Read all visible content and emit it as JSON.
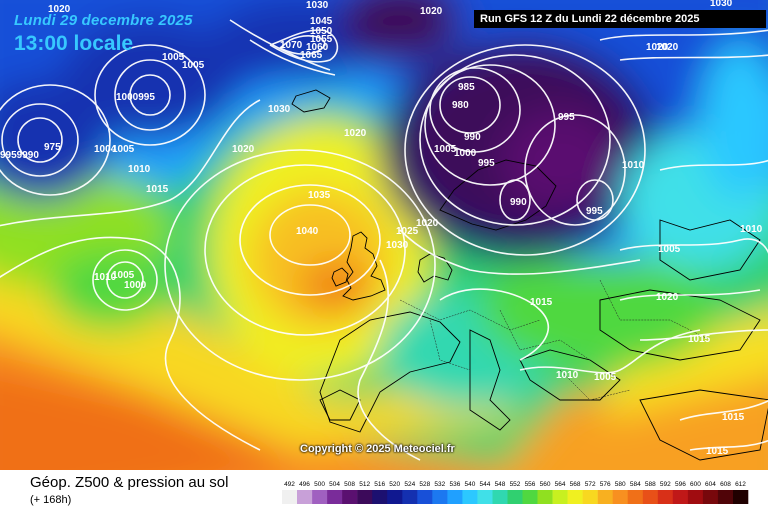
{
  "header": {
    "date": "Lundi 29 decembre 2025",
    "time": "13:00 locale",
    "run": "Run GFS 12 Z du Lundi 22 décembre 2025"
  },
  "map": {
    "copyright": "Copyright © 2025 Meteociel.fr",
    "isobar_labels": [
      {
        "text": "1020"
      },
      {
        "text": "1030"
      },
      {
        "text": "1045"
      },
      {
        "text": "1050"
      },
      {
        "text": "1055"
      },
      {
        "text": "1060"
      },
      {
        "text": "1065"
      },
      {
        "text": "1070"
      },
      {
        "text": "1020"
      },
      {
        "text": "1020"
      },
      {
        "text": "985"
      },
      {
        "text": "980"
      },
      {
        "text": "990"
      },
      {
        "text": "995"
      },
      {
        "text": "995"
      },
      {
        "text": "1010"
      },
      {
        "text": "990"
      },
      {
        "text": "995"
      },
      {
        "text": "1005"
      },
      {
        "text": "1000"
      },
      {
        "text": "1005"
      },
      {
        "text": "1020"
      },
      {
        "text": "1000995"
      },
      {
        "text": "1005"
      },
      {
        "text": "1030"
      },
      {
        "text": "1020"
      },
      {
        "text": "1020"
      },
      {
        "text": "1010"
      },
      {
        "text": "1015"
      },
      {
        "text": "1004"
      },
      {
        "text": "1005"
      },
      {
        "text": "9959990"
      },
      {
        "text": "975"
      },
      {
        "text": "1035"
      },
      {
        "text": "1040"
      },
      {
        "text": "1025"
      },
      {
        "text": "1020"
      },
      {
        "text": "1030"
      },
      {
        "text": "1010"
      },
      {
        "text": "1000"
      },
      {
        "text": "1005"
      },
      {
        "text": "1015"
      },
      {
        "text": "1005"
      },
      {
        "text": "1020"
      },
      {
        "text": "1010"
      },
      {
        "text": "1015"
      },
      {
        "text": "1010"
      },
      {
        "text": "1005"
      },
      {
        "text": "1015"
      },
      {
        "text": "1015"
      },
      {
        "text": "1030"
      }
    ]
  },
  "footer": {
    "title": "Géop. Z500 & pression au sol",
    "subtitle": "(+ 168h)"
  },
  "legend": {
    "ticks": [
      "492",
      "496",
      "500",
      "504",
      "508",
      "512",
      "516",
      "520",
      "524",
      "528",
      "532",
      "536",
      "540",
      "544",
      "548",
      "552",
      "556",
      "560",
      "564",
      "568",
      "572",
      "576",
      "580",
      "584",
      "588",
      "592",
      "596",
      "600",
      "604",
      "608",
      "612"
    ],
    "colors": [
      "#f0f0f0",
      "#c8a0d8",
      "#a060c0",
      "#7a2c9a",
      "#5a1070",
      "#3c0a5a",
      "#1c1070",
      "#101890",
      "#1430b0",
      "#1850d8",
      "#1c78f0",
      "#20a0ff",
      "#2cc8ff",
      "#40e0e8",
      "#30d8b0",
      "#30d070",
      "#50d840",
      "#90e020",
      "#c8f020",
      "#f0f020",
      "#f8d820",
      "#f8b020",
      "#f89020",
      "#f07018",
      "#e85018",
      "#d83018",
      "#c01818",
      "#a00c10",
      "#78080c",
      "#500408",
      "#200000"
    ]
  }
}
